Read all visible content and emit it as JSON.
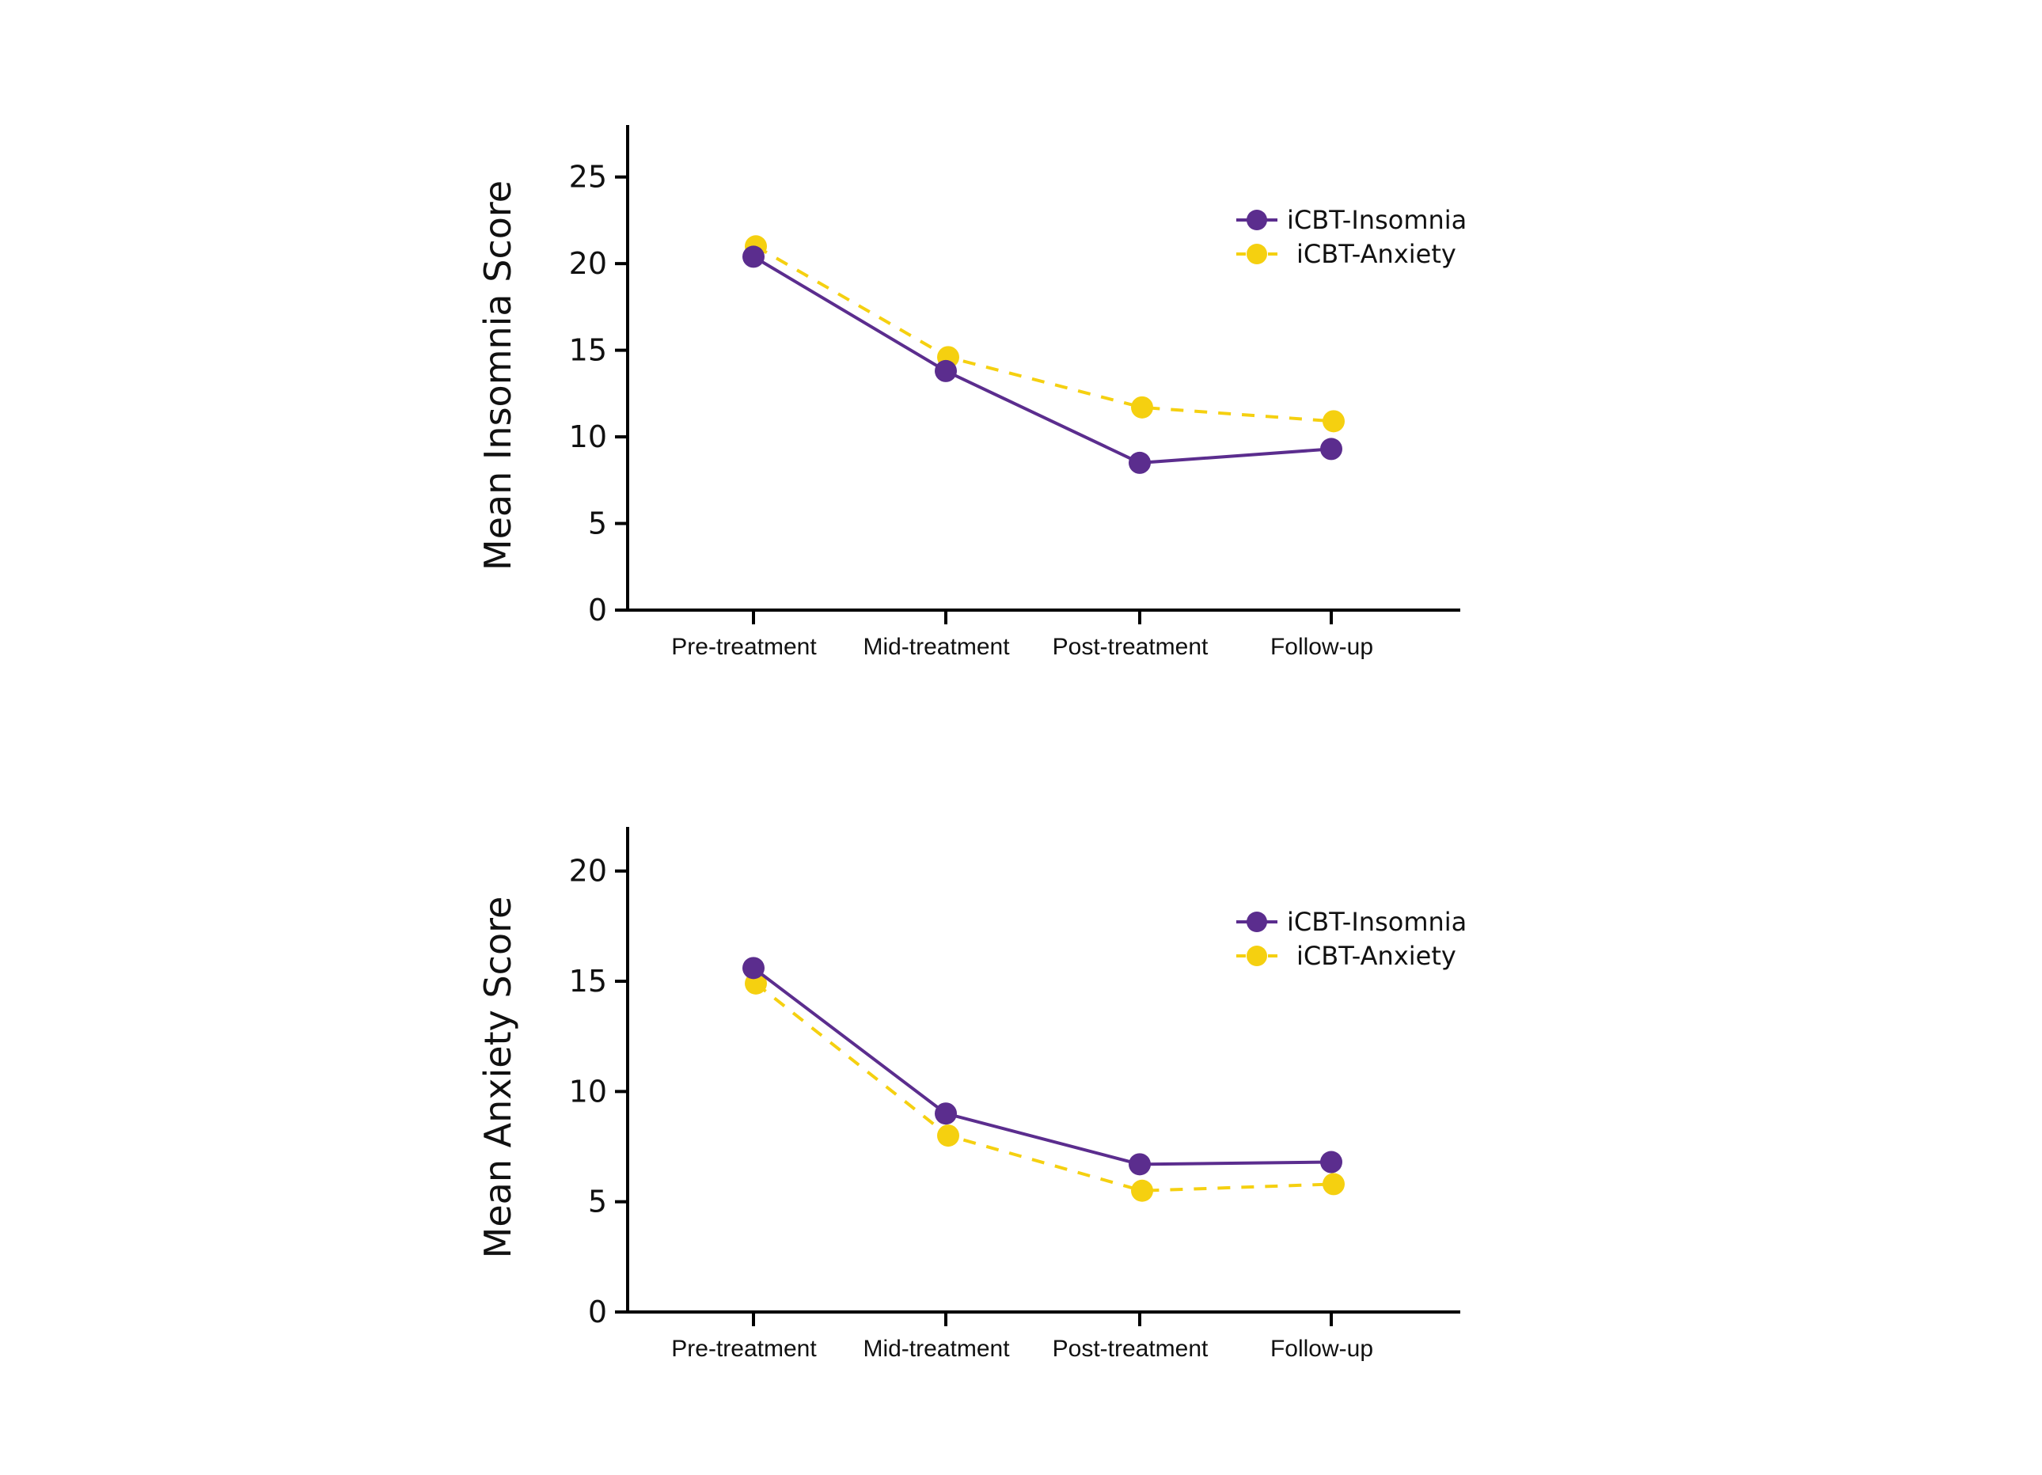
{
  "chart_data": [
    {
      "type": "line",
      "title": "",
      "xlabel": "",
      "ylabel": "Mean Insomnia Score",
      "categories": [
        "Pre-treatment",
        "Mid-treatment",
        "Post-treatment",
        "Follow-up"
      ],
      "yticks": [
        0,
        5,
        10,
        15,
        20,
        25
      ],
      "ylim": [
        0,
        28
      ],
      "grid": false,
      "legend_position": "top-right",
      "series": [
        {
          "name": "iCBT-Insomnia",
          "color": "#5b2d8e",
          "style": "solid",
          "values": [
            20.4,
            13.8,
            8.5,
            9.3
          ]
        },
        {
          "name": "iCBT-Anxiety",
          "color": "#f5d010",
          "style": "dashed",
          "values": [
            21.0,
            14.6,
            11.7,
            10.9
          ]
        }
      ]
    },
    {
      "type": "line",
      "title": "",
      "xlabel": "",
      "ylabel": "Mean Anxiety Score",
      "categories": [
        "Pre-treatment",
        "Mid-treatment",
        "Post-treatment",
        "Follow-up"
      ],
      "yticks": [
        0,
        5,
        10,
        15,
        20
      ],
      "ylim": [
        0,
        22
      ],
      "grid": false,
      "legend_position": "top-right",
      "series": [
        {
          "name": "iCBT-Insomnia",
          "color": "#5b2d8e",
          "style": "solid",
          "values": [
            15.6,
            9.0,
            6.7,
            6.8
          ]
        },
        {
          "name": "iCBT-Anxiety",
          "color": "#f5d010",
          "style": "dashed",
          "values": [
            14.9,
            8.0,
            5.5,
            5.8
          ]
        }
      ]
    }
  ]
}
